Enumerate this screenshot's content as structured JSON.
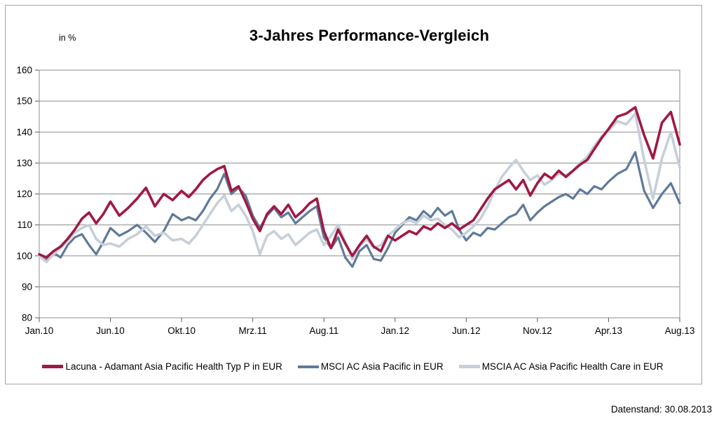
{
  "chart_data": {
    "type": "line",
    "title": "3-Jahres Performance-Vergleich",
    "unit_label": "in %",
    "footnote": "Datenstand: 30.08.2013",
    "legend_position": "bottom",
    "y_axis": {
      "min": 80,
      "max": 160,
      "ticks": [
        160,
        150,
        140,
        130,
        120,
        110,
        100,
        90,
        80
      ],
      "grid": true
    },
    "x_axis": {
      "tick_labels": [
        "Jan.10",
        "Jun.10",
        "Okt.10",
        "Mrz.11",
        "Aug.11",
        "Jan.12",
        "Jun.12",
        "Nov.12",
        "Apr.13",
        "Aug.13"
      ],
      "tick_months": [
        0,
        5,
        9,
        14,
        19,
        24,
        29,
        34,
        39,
        43
      ]
    },
    "sample_interval_months": 0.5,
    "series": [
      {
        "name": "Lacuna - Adamant Asia Pacific Health Typ P in EUR",
        "color": "#a01945",
        "width": 3.6,
        "values": [
          100.5,
          99.5,
          101.5,
          103,
          105.5,
          108.5,
          112,
          114,
          110.5,
          113.5,
          117.5,
          113,
          115.5,
          118.5,
          122,
          116,
          120,
          118,
          121,
          119,
          121.5,
          124.5,
          126.5,
          128,
          129,
          121,
          122.5,
          117.5,
          112,
          108,
          113.5,
          116,
          113.5,
          116.5,
          112.5,
          114.5,
          117,
          118.5,
          108,
          102.5,
          108.5,
          104,
          100,
          103.5,
          106.5,
          103,
          101.5,
          106.5,
          105,
          106.5,
          108,
          107,
          109.5,
          108.5,
          110.5,
          109,
          110.5,
          108.5,
          110,
          111.5,
          115,
          118.5,
          121.5,
          123,
          124.5,
          121.5,
          124.5,
          119.5,
          123.5,
          126.5,
          125,
          127.5,
          125.5,
          127.5,
          129.5,
          131,
          134.5,
          138,
          141,
          145,
          146,
          148,
          139,
          131.5,
          143,
          146.5,
          136
        ]
      },
      {
        "name": "MSCI AC Asia Pacific in EUR",
        "color": "#5f7a9a",
        "width": 3.2,
        "values": [
          100,
          98.5,
          101,
          99.5,
          103.5,
          106,
          107,
          103.5,
          100.5,
          104.5,
          109,
          106.5,
          108,
          110,
          107.5,
          104.5,
          108,
          113.5,
          111.5,
          112.5,
          111.5,
          114.5,
          118.5,
          121.5,
          126.5,
          120,
          122,
          119.5,
          113,
          109,
          113,
          115.5,
          112.5,
          114,
          110.5,
          112.5,
          114.5,
          116,
          106,
          102.5,
          106,
          99.5,
          96.5,
          101.5,
          103.5,
          99,
          98.5,
          102.5,
          107.5,
          110,
          112.5,
          111.5,
          114.5,
          112.5,
          115.5,
          113,
          114.5,
          108.5,
          105,
          107.5,
          106.5,
          109,
          108.5,
          110.5,
          112.5,
          113.5,
          116.5,
          111.5,
          114,
          116,
          117.5,
          119,
          120,
          118.5,
          121.5,
          120,
          122.5,
          121.5,
          124,
          126.5,
          128,
          133.5,
          121,
          115.5,
          120,
          123.5,
          117
        ]
      },
      {
        "name": "MSCIA AC Asia Pacific Health Care  in EUR",
        "color": "#c6cfda",
        "width": 3.6,
        "values": [
          100,
          98,
          100.5,
          102.5,
          105,
          107.5,
          109,
          110,
          105.5,
          103.5,
          104,
          103,
          105.5,
          107,
          109.5,
          106.5,
          107.5,
          105,
          105.5,
          104,
          106.5,
          110,
          113.5,
          117,
          119.5,
          114.5,
          116.5,
          113,
          108,
          100.5,
          106.5,
          108,
          105.5,
          107,
          103.5,
          105.5,
          107.5,
          108.5,
          103.5,
          106.5,
          110,
          104.5,
          99,
          103,
          105.5,
          102.5,
          103.5,
          106.5,
          108.5,
          110.5,
          111.5,
          110.5,
          113,
          111.5,
          112,
          110,
          108.5,
          106,
          107.5,
          109.5,
          112,
          116,
          121,
          125.5,
          128.5,
          131,
          127.5,
          124.5,
          126,
          123,
          124.5,
          126.5,
          126,
          127.5,
          130,
          132,
          135.5,
          138.5,
          140.5,
          143.5,
          142.5,
          146,
          131,
          118.5,
          131.5,
          140,
          128.5
        ]
      }
    ],
    "styles": {
      "grid_color": "#8c8c8c",
      "border_color": "#8c8c8c",
      "tick_color": "#595959",
      "frame_color": "#a6a6a6",
      "text_color": "#000000"
    }
  }
}
